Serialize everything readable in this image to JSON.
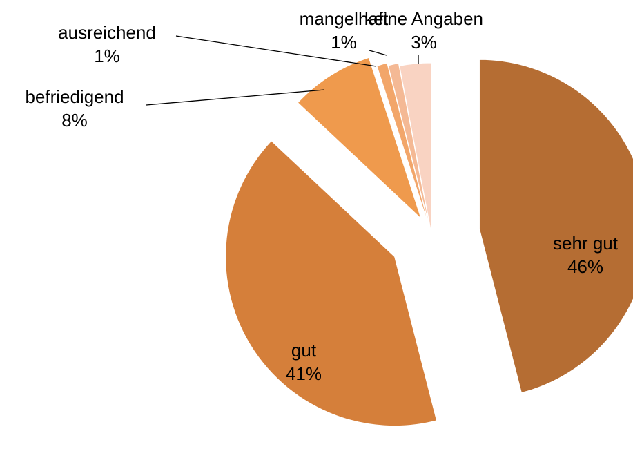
{
  "chart_data": {
    "type": "pie",
    "categories": [
      "sehr gut",
      "gut",
      "befriedigend",
      "ausreichend",
      "mangelhaft",
      "keine Angaben"
    ],
    "values": [
      46,
      41,
      8,
      1,
      1,
      3
    ],
    "value_labels": [
      "46%",
      "41%",
      "8%",
      "1%",
      "1%",
      "3%"
    ],
    "colors": [
      "#b56d33",
      "#d57f3a",
      "#ef9a4d",
      "#f2a66a",
      "#f4b995",
      "#f9d3c2"
    ]
  }
}
